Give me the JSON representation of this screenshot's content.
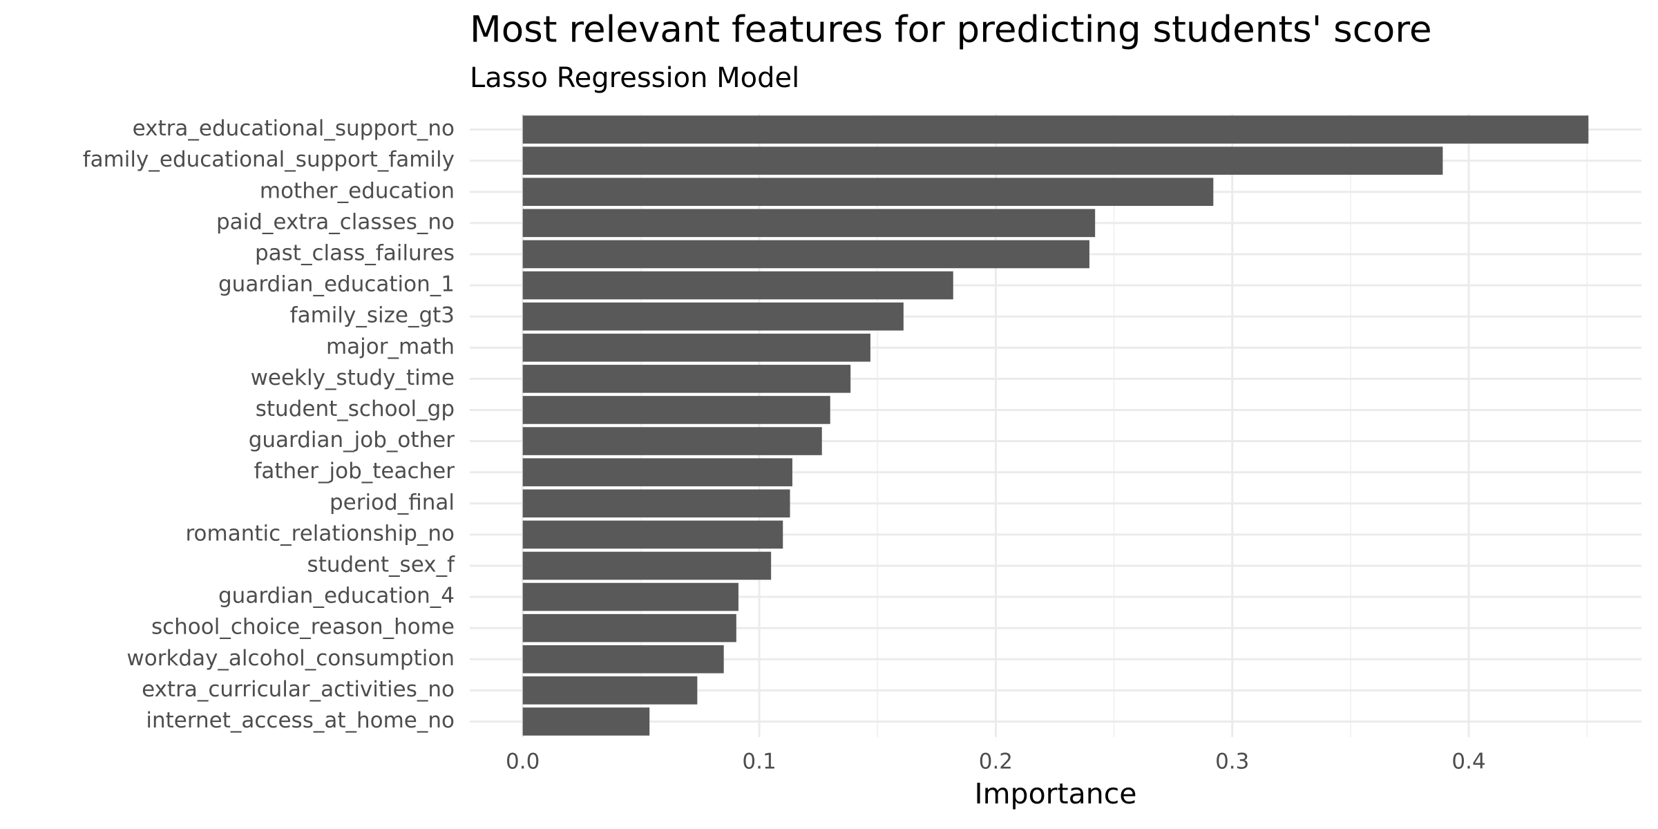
{
  "chart_data": {
    "type": "barh",
    "title": "Most relevant features for predicting students' score",
    "subtitle": "Lasso Regression Model",
    "x_label": "Importance",
    "categories": [
      "extra_educational_support_no",
      "family_educational_support_family",
      "mother_education",
      "paid_extra_classes_no",
      "past_class_failures",
      "guardian_education_1",
      "family_size_gt3",
      "major_math",
      "weekly_study_time",
      "student_school_gp",
      "guardian_job_other",
      "father_job_teacher",
      "period_final",
      "romantic_relationship_no",
      "student_sex_f",
      "guardian_education_4",
      "school_choice_reason_home",
      "workday_alcohol_consumption",
      "extra_curricular_activities_no",
      "internet_access_at_home_no"
    ],
    "values": [
      0.4506,
      0.389,
      0.292,
      0.242,
      0.2396,
      0.182,
      0.161,
      0.147,
      0.1386,
      0.13,
      0.1265,
      0.114,
      0.113,
      0.11,
      0.105,
      0.0912,
      0.0903,
      0.085,
      0.0738,
      0.0536
    ],
    "color": "#595959",
    "xlim": [
      -0.0224,
      0.473
    ],
    "xticks": [
      {
        "value": 0,
        "label": "0.0"
      },
      0.1,
      0.2,
      0.3,
      0.4
    ],
    "xminor": [
      0.05,
      0.15,
      0.25,
      0.35,
      0.45
    ],
    "grid": true
  }
}
